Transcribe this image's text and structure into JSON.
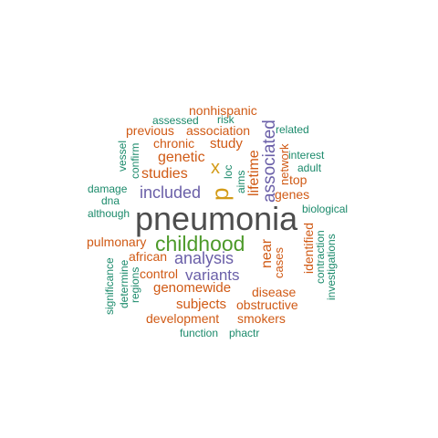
{
  "colors": {
    "dark_gray": "#4d4d4d",
    "green": "#4d9a2a",
    "purple": "#6a5fa8",
    "orange": "#d05a15",
    "teal": "#1b8a6b",
    "gold": "#d39b17"
  },
  "words": [
    {
      "text": "pneumonia",
      "color": "#4d4d4d"
    },
    {
      "text": "childhood",
      "color": "#4d9a2a"
    },
    {
      "text": "p",
      "color": "#d39b17"
    },
    {
      "text": "associated",
      "color": "#6a5fa8"
    },
    {
      "text": "x",
      "color": "#d39b17"
    },
    {
      "text": "included",
      "color": "#6a5fa8"
    },
    {
      "text": "analysis",
      "color": "#6a5fa8"
    },
    {
      "text": "variants",
      "color": "#6a5fa8"
    },
    {
      "text": "genetic",
      "color": "#d05a15"
    },
    {
      "text": "studies",
      "color": "#d05a15"
    },
    {
      "text": "study",
      "color": "#d05a15"
    },
    {
      "text": "lifetime",
      "color": "#d05a15"
    },
    {
      "text": "near",
      "color": "#d05a15"
    },
    {
      "text": "genomewide",
      "color": "#d05a15"
    },
    {
      "text": "subjects",
      "color": "#d05a15"
    },
    {
      "text": "nonhispanic",
      "color": "#d05a15"
    },
    {
      "text": "association",
      "color": "#d05a15"
    },
    {
      "text": "previous",
      "color": "#d05a15"
    },
    {
      "text": "chronic",
      "color": "#d05a15"
    },
    {
      "text": "pulmonary",
      "color": "#d05a15"
    },
    {
      "text": "african",
      "color": "#d05a15"
    },
    {
      "text": "control",
      "color": "#d05a15"
    },
    {
      "text": "disease",
      "color": "#d05a15"
    },
    {
      "text": "obstructive",
      "color": "#d05a15"
    },
    {
      "text": "development",
      "color": "#d05a15"
    },
    {
      "text": "smokers",
      "color": "#d05a15"
    },
    {
      "text": "top",
      "color": "#d05a15"
    },
    {
      "text": "genes",
      "color": "#d05a15"
    },
    {
      "text": "cases",
      "color": "#d05a15"
    },
    {
      "text": "identified",
      "color": "#d05a15"
    },
    {
      "text": "network",
      "color": "#d05a15"
    },
    {
      "text": "assessed",
      "color": "#1b8a6b"
    },
    {
      "text": "risk",
      "color": "#1b8a6b"
    },
    {
      "text": "related",
      "color": "#1b8a6b"
    },
    {
      "text": "vessel",
      "color": "#1b8a6b"
    },
    {
      "text": "confirm",
      "color": "#1b8a6b"
    },
    {
      "text": "loc",
      "color": "#1b8a6b"
    },
    {
      "text": "aims",
      "color": "#1b8a6b"
    },
    {
      "text": "interest",
      "color": "#1b8a6b"
    },
    {
      "text": "adult",
      "color": "#1b8a6b"
    },
    {
      "text": "damage",
      "color": "#1b8a6b"
    },
    {
      "text": "dna",
      "color": "#1b8a6b"
    },
    {
      "text": "although",
      "color": "#1b8a6b"
    },
    {
      "text": "biological",
      "color": "#1b8a6b"
    },
    {
      "text": "contraction",
      "color": "#1b8a6b"
    },
    {
      "text": "investigations",
      "color": "#1b8a6b"
    },
    {
      "text": "significance",
      "color": "#1b8a6b"
    },
    {
      "text": "determine",
      "color": "#1b8a6b"
    },
    {
      "text": "regions",
      "color": "#1b8a6b"
    },
    {
      "text": "function",
      "color": "#1b8a6b"
    },
    {
      "text": "phactr",
      "color": "#1b8a6b"
    }
  ]
}
